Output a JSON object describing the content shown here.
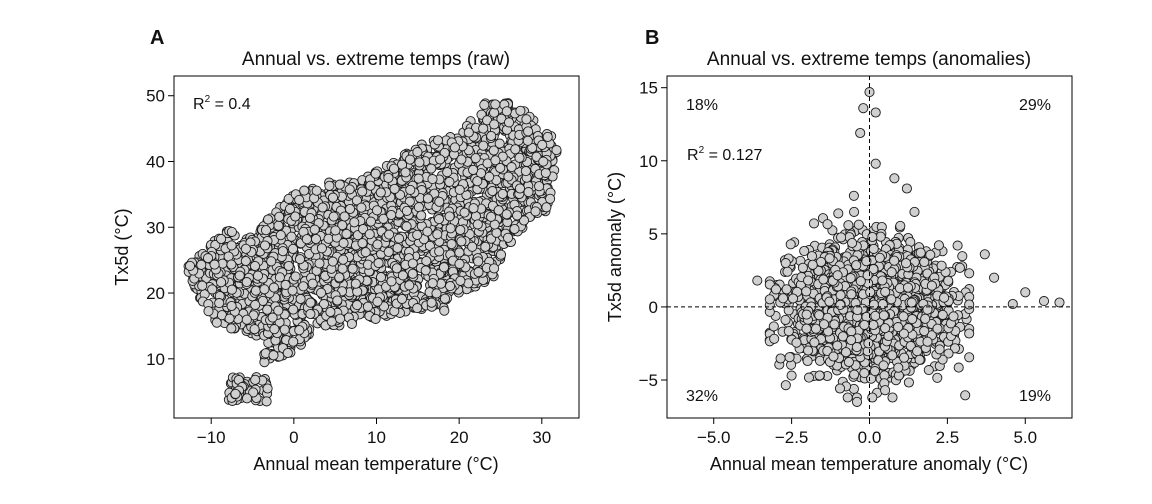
{
  "chart_data": [
    {
      "panel_label": "A",
      "type": "scatter",
      "title": "Annual vs. extreme temps (raw)",
      "xlabel": "Annual mean temperature (°C)",
      "ylabel": "Tx5d (°C)",
      "xlim": [
        -14.5,
        34.5
      ],
      "ylim": [
        1,
        53
      ],
      "xticks": [
        -10,
        0,
        10,
        20,
        30
      ],
      "yticks": [
        10,
        20,
        30,
        40,
        50
      ],
      "xtick_labels": [
        "−10",
        "0",
        "10",
        "20",
        "30"
      ],
      "ytick_labels": [
        "10",
        "20",
        "30",
        "40",
        "50"
      ],
      "annotation": {
        "r2_label": "R",
        "r2_sup": "2",
        "r2_text": " = 0.4"
      },
      "marker_color": "#d0d0d0",
      "edge_color": "#1a1a1a",
      "cloud": [
        [
          -12,
          25
        ],
        [
          -10,
          28
        ],
        [
          -8,
          30
        ],
        [
          -6,
          28
        ],
        [
          -4,
          30
        ],
        [
          -2,
          33
        ],
        [
          0,
          35
        ],
        [
          4,
          37
        ],
        [
          8,
          37
        ],
        [
          12,
          40
        ],
        [
          16,
          43
        ],
        [
          20,
          44
        ],
        [
          23,
          49
        ],
        [
          27,
          49
        ],
        [
          30,
          45
        ],
        [
          32,
          43
        ],
        [
          31,
          33
        ],
        [
          28,
          30
        ],
        [
          26,
          27
        ],
        [
          24,
          22
        ],
        [
          20,
          20
        ],
        [
          18,
          17
        ],
        [
          14,
          17
        ],
        [
          10,
          16
        ],
        [
          6,
          15
        ],
        [
          3,
          15
        ],
        [
          0,
          11
        ],
        [
          -2,
          10
        ],
        [
          -4,
          9
        ],
        [
          -3,
          13
        ],
        [
          -6,
          14
        ],
        [
          -9,
          15
        ],
        [
          -11,
          18
        ],
        [
          -13,
          24
        ]
      ],
      "cluster": {
        "x_range": [
          -8,
          -3
        ],
        "y_range": [
          3.5,
          7.5
        ]
      }
    },
    {
      "panel_label": "B",
      "type": "scatter",
      "title": "Annual vs. extreme temps (anomalies)",
      "xlabel": "Annual mean temperature anomaly (°C)",
      "ylabel": "Tx5d anomaly (°C)",
      "xlim": [
        -6.5,
        6.5
      ],
      "ylim": [
        -7.6,
        15.8
      ],
      "xticks": [
        -5,
        -2.5,
        0,
        2.5,
        5
      ],
      "yticks": [
        -5,
        0,
        5,
        10,
        15
      ],
      "xtick_labels": [
        "−5.0",
        "−2.5",
        "0.0",
        "2.5",
        "5.0"
      ],
      "ytick_labels": [
        "−5",
        "0",
        "5",
        "10",
        "15"
      ],
      "annotation": {
        "r2_label": "R",
        "r2_sup": "2",
        "r2_text": " = 0.127"
      },
      "quadrant_percentages": {
        "top_left": "18%",
        "top_right": "29%",
        "bottom_left": "32%",
        "bottom_right": "19%"
      },
      "reference_lines": {
        "x": 0,
        "y": 0,
        "style": "dashed"
      },
      "marker_color": "#d0d0d0",
      "edge_color": "#1a1a1a",
      "cloud_center": [
        0,
        0
      ],
      "cloud_spread": [
        1.2,
        2.0
      ],
      "outliers": [
        [
          -0.3,
          11.9
        ],
        [
          -0.2,
          13.6
        ],
        [
          0,
          14.7
        ],
        [
          0.2,
          13.3
        ],
        [
          0.2,
          9.8
        ],
        [
          0.8,
          8.8
        ],
        [
          1.2,
          8.1
        ],
        [
          -0.5,
          7.6
        ],
        [
          3.7,
          3.6
        ],
        [
          4.0,
          2.0
        ],
        [
          4.6,
          0.2
        ],
        [
          5.0,
          1.0
        ],
        [
          5.6,
          0.4
        ],
        [
          6.1,
          0.3
        ],
        [
          -3.6,
          1.8
        ],
        [
          -2.5,
          -4.7
        ],
        [
          -0.4,
          -6.5
        ],
        [
          -0.7,
          -6.2
        ],
        [
          0.5,
          -5.7
        ],
        [
          -3.0,
          1.2
        ],
        [
          3.2,
          2.3
        ],
        [
          -1.0,
          6.4
        ]
      ]
    }
  ]
}
